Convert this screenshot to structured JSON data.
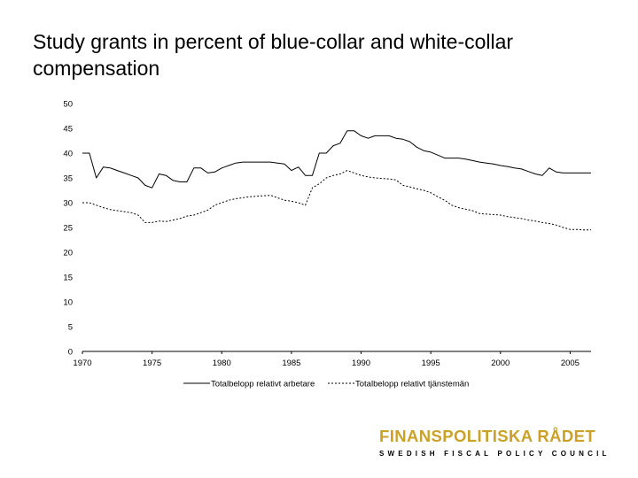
{
  "slide": {
    "title": "Study grants in percent of blue-collar and white-collar compensation"
  },
  "logo": {
    "main": "FINANSPOLITISKA RÅDET",
    "sub": "SWEDISH FISCAL POLICY COUNCIL",
    "accent_color": "#c9a227"
  },
  "chart_data": {
    "type": "line",
    "title": "",
    "xlabel": "",
    "ylabel": "",
    "xlim": [
      1970,
      2006.5
    ],
    "ylim": [
      0,
      50
    ],
    "x_ticks": [
      1970,
      1975,
      1980,
      1985,
      1990,
      1995,
      2000,
      2005
    ],
    "y_ticks": [
      0,
      5,
      10,
      15,
      20,
      25,
      30,
      35,
      40,
      45,
      50
    ],
    "grid": false,
    "legend_position": "bottom",
    "series": [
      {
        "name": "Totalbelopp relativt arbetare",
        "style": "solid",
        "x": [
          1970,
          1970.5,
          1971,
          1971.5,
          1972,
          1972.5,
          1973,
          1973.5,
          1974,
          1974.5,
          1975,
          1975.5,
          1976,
          1976.5,
          1977,
          1977.5,
          1978,
          1978.5,
          1979,
          1979.5,
          1980,
          1980.5,
          1981,
          1981.5,
          1982,
          1982.5,
          1983,
          1983.5,
          1984,
          1984.5,
          1985,
          1985.5,
          1986,
          1986.5,
          1987,
          1987.5,
          1988,
          1988.5,
          1989,
          1989.5,
          1990,
          1990.5,
          1991,
          1991.5,
          1992,
          1992.5,
          1993,
          1993.5,
          1994,
          1994.5,
          1995,
          1995.5,
          1996,
          1996.5,
          1997,
          1997.5,
          1998,
          1998.5,
          1999,
          1999.5,
          2000,
          2000.5,
          2001,
          2001.5,
          2002,
          2002.5,
          2003,
          2003.5,
          2004,
          2004.5,
          2005,
          2005.5,
          2006,
          2006.5
        ],
        "values": [
          40.0,
          40.0,
          35.0,
          37.2,
          37.0,
          36.5,
          36.0,
          35.5,
          35.0,
          33.5,
          33.0,
          35.8,
          35.5,
          34.5,
          34.2,
          34.2,
          37.0,
          37.0,
          36.0,
          36.2,
          37.0,
          37.5,
          38.0,
          38.2,
          38.2,
          38.2,
          38.2,
          38.2,
          38.0,
          37.8,
          36.5,
          37.2,
          35.5,
          35.5,
          40.0,
          40.0,
          41.5,
          42.0,
          44.5,
          44.5,
          43.5,
          43.0,
          43.5,
          43.5,
          43.5,
          43.0,
          42.8,
          42.3,
          41.2,
          40.5,
          40.2,
          39.6,
          39.0,
          39.0,
          39.0,
          38.8,
          38.5,
          38.2,
          38.0,
          37.8,
          37.5,
          37.3,
          37.0,
          36.8,
          36.3,
          35.8,
          35.5,
          37.0,
          36.2,
          36.0,
          36.0,
          36.0,
          36.0,
          36.0
        ]
      },
      {
        "name": "Totalbelopp relativt tjänstemän",
        "style": "dotted",
        "x": [
          1970,
          1970.5,
          1971,
          1971.5,
          1972,
          1972.5,
          1973,
          1973.5,
          1974,
          1974.5,
          1975,
          1975.5,
          1976,
          1976.5,
          1977,
          1977.5,
          1978,
          1978.5,
          1979,
          1979.5,
          1980,
          1980.5,
          1981,
          1981.5,
          1982,
          1982.5,
          1983,
          1983.5,
          1984,
          1984.5,
          1985,
          1985.5,
          1986,
          1986.5,
          1987,
          1987.5,
          1988,
          1988.5,
          1989,
          1989.5,
          1990,
          1990.5,
          1991,
          1991.5,
          1992,
          1992.5,
          1993,
          1993.5,
          1994,
          1994.5,
          1995,
          1995.5,
          1996,
          1996.5,
          1997,
          1997.5,
          1998,
          1998.5,
          1999,
          1999.5,
          2000,
          2000.5,
          2001,
          2001.5,
          2002,
          2002.5,
          2003,
          2003.5,
          2004,
          2004.5,
          2005,
          2005.5,
          2006,
          2006.5
        ],
        "values": [
          30.0,
          30.0,
          29.5,
          29.0,
          28.6,
          28.4,
          28.2,
          28.0,
          27.5,
          26.0,
          26.0,
          26.3,
          26.2,
          26.5,
          26.8,
          27.3,
          27.5,
          28.0,
          28.5,
          29.5,
          30.0,
          30.5,
          30.8,
          31.0,
          31.2,
          31.3,
          31.4,
          31.5,
          31.0,
          30.5,
          30.3,
          30.0,
          29.5,
          33.0,
          33.8,
          35.0,
          35.5,
          35.8,
          36.5,
          36.0,
          35.5,
          35.2,
          35.0,
          34.9,
          34.8,
          34.6,
          33.5,
          33.2,
          32.8,
          32.5,
          32.0,
          31.2,
          30.5,
          29.5,
          29.0,
          28.7,
          28.4,
          27.8,
          27.7,
          27.6,
          27.5,
          27.2,
          27.0,
          26.8,
          26.5,
          26.3,
          26.0,
          25.8,
          25.5,
          25.0,
          24.6,
          24.6,
          24.5,
          24.5
        ]
      }
    ]
  }
}
